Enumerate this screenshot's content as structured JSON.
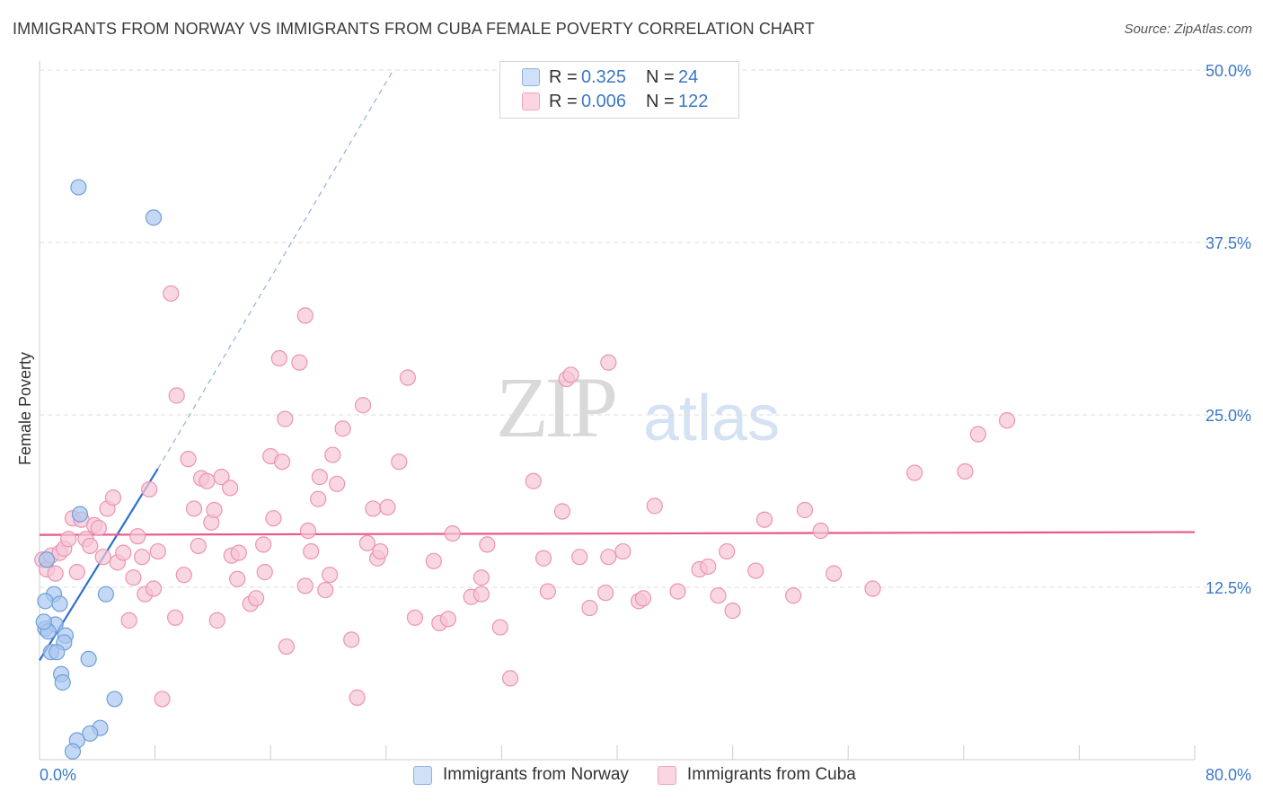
{
  "header": {
    "title": "IMMIGRANTS FROM NORWAY VS IMMIGRANTS FROM CUBA FEMALE POVERTY CORRELATION CHART",
    "source": "Source: ZipAtlas.com"
  },
  "watermark": {
    "zip": "ZIP",
    "atlas": "atlas"
  },
  "legend": {
    "rows": [
      {
        "r_label": "R =",
        "r_value": "0.325",
        "n_label": "N =",
        "n_value": "24",
        "color": "#a9c8f0"
      },
      {
        "r_label": "R =",
        "r_value": "0.006",
        "n_label": "N =",
        "n_value": "122",
        "color": "#f7bcd0"
      }
    ]
  },
  "colors": {
    "norway_fill": "#a9c8f0",
    "norway_stroke": "#6f9fd8",
    "norway_line": "#2f6fcf",
    "cuba_fill": "#f7c6d6",
    "cuba_stroke": "#ec93b1",
    "cuba_line": "#e8588a",
    "axis_label": "#3b78c8",
    "grid": "#dddddd"
  },
  "chart_data": {
    "type": "scatter",
    "title": "IMMIGRANTS FROM NORWAY VS IMMIGRANTS FROM CUBA FEMALE POVERTY CORRELATION CHART",
    "xlabel": "",
    "ylabel": "Female Poverty",
    "xlim": [
      0,
      80
    ],
    "ylim": [
      0,
      50
    ],
    "x_tick_labels": [
      "0.0%",
      "80.0%"
    ],
    "y_ticks": [
      12.5,
      25.0,
      37.5,
      50.0
    ],
    "y_tick_labels": [
      "12.5%",
      "25.0%",
      "37.5%",
      "50.0%"
    ],
    "grid": true,
    "legend_position": "top-center",
    "series": [
      {
        "name": "Immigrants from Norway",
        "points": [
          [
            2.7,
            41.5
          ],
          [
            7.9,
            39.3
          ],
          [
            2.8,
            17.8
          ],
          [
            4.6,
            12.0
          ],
          [
            0.5,
            14.5
          ],
          [
            1.0,
            12.0
          ],
          [
            0.4,
            11.5
          ],
          [
            1.4,
            11.3
          ],
          [
            1.1,
            9.8
          ],
          [
            0.4,
            9.5
          ],
          [
            0.6,
            9.3
          ],
          [
            1.8,
            9.0
          ],
          [
            0.3,
            10.0
          ],
          [
            1.7,
            8.5
          ],
          [
            0.8,
            7.8
          ],
          [
            1.2,
            7.8
          ],
          [
            3.4,
            7.3
          ],
          [
            1.5,
            6.2
          ],
          [
            1.6,
            5.6
          ],
          [
            5.2,
            4.4
          ],
          [
            4.2,
            2.3
          ],
          [
            3.5,
            1.9
          ],
          [
            2.6,
            1.4
          ],
          [
            2.3,
            0.6
          ]
        ],
        "trend": {
          "x": [
            0.0,
            8.2
          ],
          "y": [
            7.2,
            21.1
          ],
          "dashed_extension": {
            "x": [
              8.2,
              24.5
            ],
            "y": [
              21.1,
              50.0
            ]
          }
        }
      },
      {
        "name": "Immigrants from Cuba",
        "points": [
          [
            0.2,
            14.5
          ],
          [
            0.5,
            13.8
          ],
          [
            0.8,
            14.8
          ],
          [
            1.1,
            13.5
          ],
          [
            1.4,
            15.0
          ],
          [
            1.7,
            15.3
          ],
          [
            2.0,
            16.0
          ],
          [
            2.3,
            17.5
          ],
          [
            2.6,
            13.6
          ],
          [
            2.9,
            17.4
          ],
          [
            3.2,
            16.0
          ],
          [
            3.5,
            15.5
          ],
          [
            3.8,
            17.0
          ],
          [
            4.1,
            16.8
          ],
          [
            4.4,
            14.7
          ],
          [
            4.7,
            18.2
          ],
          [
            5.1,
            19.0
          ],
          [
            5.4,
            14.3
          ],
          [
            5.8,
            15.0
          ],
          [
            6.2,
            10.1
          ],
          [
            6.5,
            13.2
          ],
          [
            6.8,
            16.2
          ],
          [
            7.1,
            14.7
          ],
          [
            7.3,
            12.0
          ],
          [
            7.6,
            19.6
          ],
          [
            7.9,
            12.4
          ],
          [
            8.2,
            15.1
          ],
          [
            8.5,
            4.4
          ],
          [
            9.1,
            33.8
          ],
          [
            9.4,
            10.3
          ],
          [
            9.5,
            26.4
          ],
          [
            10.0,
            13.4
          ],
          [
            10.3,
            21.8
          ],
          [
            10.7,
            18.2
          ],
          [
            11.0,
            15.5
          ],
          [
            11.2,
            20.4
          ],
          [
            11.6,
            20.2
          ],
          [
            11.9,
            17.2
          ],
          [
            12.1,
            18.1
          ],
          [
            12.3,
            10.1
          ],
          [
            12.6,
            20.5
          ],
          [
            13.2,
            19.7
          ],
          [
            13.3,
            14.8
          ],
          [
            13.7,
            13.1
          ],
          [
            13.8,
            15.0
          ],
          [
            14.6,
            11.3
          ],
          [
            15.0,
            11.7
          ],
          [
            15.5,
            15.6
          ],
          [
            15.6,
            13.6
          ],
          [
            16.0,
            22.0
          ],
          [
            16.2,
            17.5
          ],
          [
            16.6,
            29.1
          ],
          [
            16.8,
            21.6
          ],
          [
            17.0,
            24.7
          ],
          [
            17.1,
            8.2
          ],
          [
            18.0,
            28.8
          ],
          [
            18.4,
            32.2
          ],
          [
            18.4,
            12.6
          ],
          [
            18.6,
            16.6
          ],
          [
            18.8,
            15.1
          ],
          [
            19.3,
            18.9
          ],
          [
            19.4,
            20.5
          ],
          [
            19.8,
            12.3
          ],
          [
            20.1,
            13.4
          ],
          [
            20.3,
            22.1
          ],
          [
            20.6,
            20.0
          ],
          [
            21.0,
            24.0
          ],
          [
            21.6,
            8.7
          ],
          [
            22.0,
            4.5
          ],
          [
            22.4,
            25.7
          ],
          [
            22.7,
            15.7
          ],
          [
            23.1,
            18.2
          ],
          [
            23.4,
            14.6
          ],
          [
            23.6,
            15.1
          ],
          [
            24.1,
            18.3
          ],
          [
            24.9,
            21.6
          ],
          [
            25.5,
            27.7
          ],
          [
            26.0,
            10.3
          ],
          [
            27.3,
            14.4
          ],
          [
            27.7,
            9.9
          ],
          [
            28.3,
            10.2
          ],
          [
            28.6,
            16.4
          ],
          [
            29.9,
            11.8
          ],
          [
            30.6,
            12.0
          ],
          [
            30.6,
            13.2
          ],
          [
            31.0,
            15.6
          ],
          [
            31.9,
            9.6
          ],
          [
            32.6,
            5.9
          ],
          [
            34.2,
            20.2
          ],
          [
            34.9,
            14.6
          ],
          [
            35.2,
            12.2
          ],
          [
            36.2,
            18.0
          ],
          [
            36.5,
            27.6
          ],
          [
            36.8,
            27.9
          ],
          [
            37.4,
            14.7
          ],
          [
            38.1,
            11.0
          ],
          [
            39.2,
            12.1
          ],
          [
            39.4,
            14.7
          ],
          [
            39.4,
            28.8
          ],
          [
            40.4,
            15.1
          ],
          [
            41.5,
            11.5
          ],
          [
            41.8,
            11.7
          ],
          [
            42.6,
            18.4
          ],
          [
            44.2,
            12.2
          ],
          [
            45.7,
            13.8
          ],
          [
            46.3,
            14.0
          ],
          [
            47.0,
            11.9
          ],
          [
            47.6,
            15.1
          ],
          [
            48.0,
            10.8
          ],
          [
            49.6,
            13.7
          ],
          [
            50.2,
            17.4
          ],
          [
            52.2,
            11.9
          ],
          [
            53.0,
            18.1
          ],
          [
            54.1,
            16.6
          ],
          [
            55.0,
            13.5
          ],
          [
            57.7,
            12.4
          ],
          [
            60.6,
            20.8
          ],
          [
            64.1,
            20.9
          ],
          [
            65.0,
            23.6
          ],
          [
            67.0,
            24.6
          ]
        ],
        "trend": {
          "x": [
            0.0,
            80.0
          ],
          "y": [
            16.3,
            16.5
          ]
        }
      }
    ]
  }
}
